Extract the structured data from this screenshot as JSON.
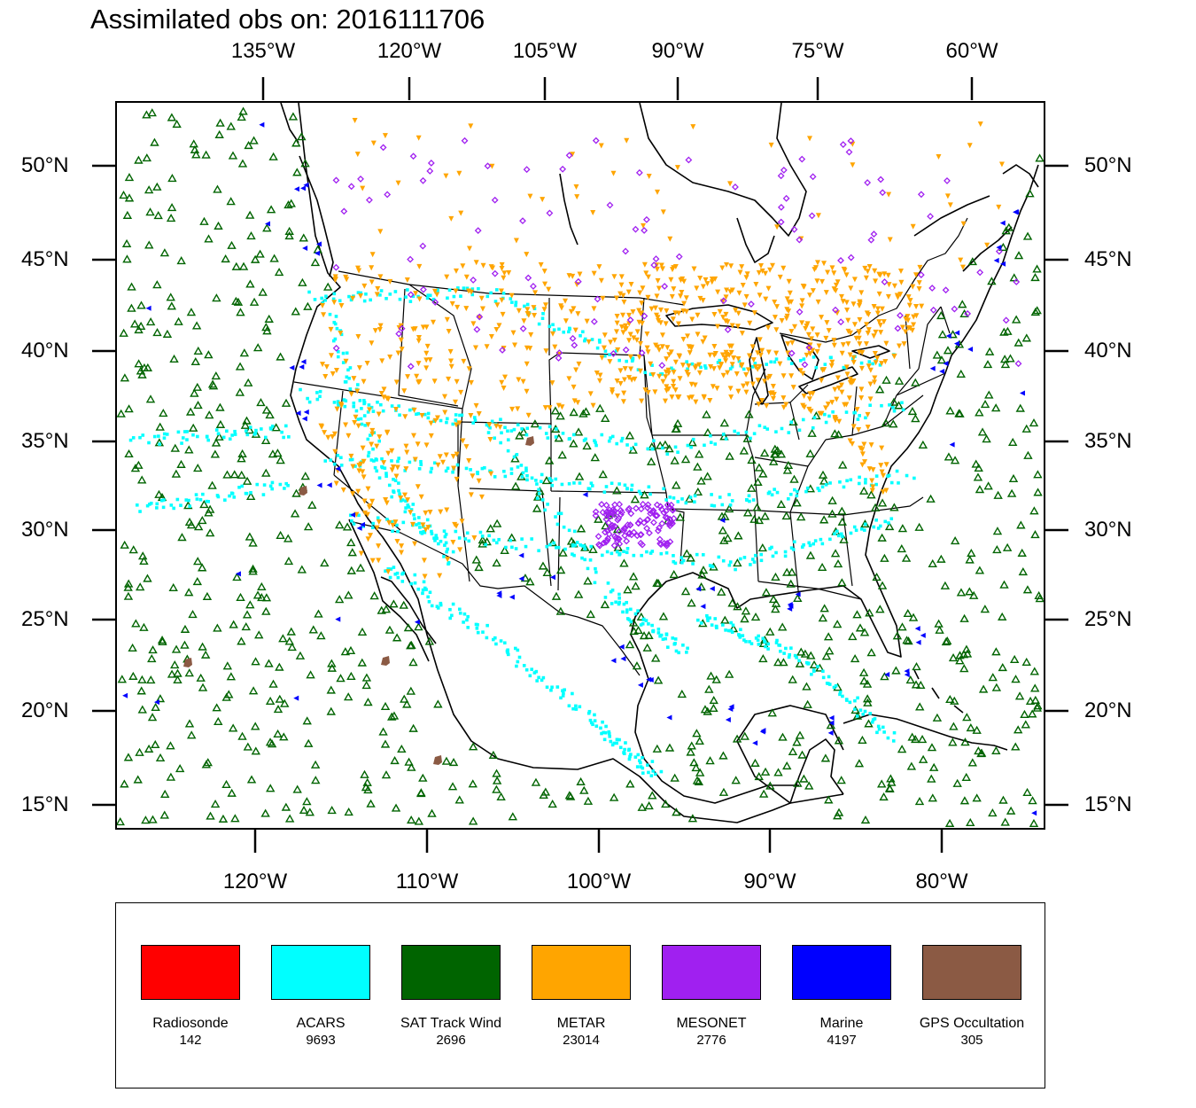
{
  "title": "Assimilated obs on: 2016111706",
  "map": {
    "top_lon_labels": [
      "135°W",
      "120°W",
      "105°W",
      "90°W",
      "75°W",
      "60°W"
    ],
    "bottom_lon_labels": [
      "120°W",
      "110°W",
      "100°W",
      "90°W",
      "80°W"
    ],
    "lat_labels": [
      "50°N",
      "45°N",
      "40°N",
      "35°N",
      "30°N",
      "25°N",
      "20°N",
      "15°N"
    ]
  },
  "legend": {
    "items": [
      {
        "name": "Radiosonde",
        "count": "142",
        "color": "#ff0000"
      },
      {
        "name": "ACARS",
        "count": "9693",
        "color": "#00ffff"
      },
      {
        "name": "SAT Track Wind",
        "count": "2696",
        "color": "#006400"
      },
      {
        "name": "METAR",
        "count": "23014",
        "color": "#ffa500"
      },
      {
        "name": "MESONET",
        "count": "2776",
        "color": "#a020f0"
      },
      {
        "name": "Marine",
        "count": "4197",
        "color": "#0000ff"
      },
      {
        "name": "GPS Occultation",
        "count": "305",
        "color": "#8b5a44"
      }
    ]
  },
  "colors": {
    "coastline": "#000000",
    "state_borders": "#000000"
  },
  "icons": {
    "sat_track_wind": "open-triangle-up-icon",
    "metar": "triangle-down-icon",
    "acars": "square-dot-icon",
    "mesonet": "diamond-icon",
    "marine": "triangle-left-icon",
    "gps_occultation": "blob-icon"
  }
}
